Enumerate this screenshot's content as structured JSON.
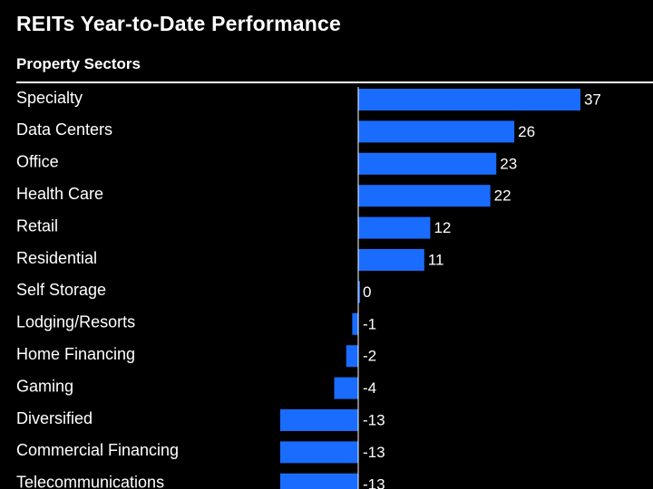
{
  "header": {
    "title": "REITs Year-to-Date Performance",
    "section": "Property Sectors"
  },
  "colors": {
    "background": "#000000",
    "bar": "#1a6cff",
    "text": "#ffffff",
    "axis": "#ffffff"
  },
  "chart_data": {
    "type": "bar",
    "orientation": "horizontal",
    "title": "REITs Year-to-Date Performance",
    "xlabel": "",
    "ylabel": "Property Sectors",
    "categories": [
      "Specialty",
      "Data Centers",
      "Office",
      "Health Care",
      "Retail",
      "Residential",
      "Self Storage",
      "Lodging/Resorts",
      "Home Financing",
      "Gaming",
      "Diversified",
      "Commercial Financing",
      "Telecommunications"
    ],
    "values": [
      37,
      26,
      23,
      22,
      12,
      11,
      0,
      -1,
      -2,
      -4,
      -13,
      -13,
      -13
    ],
    "value_labels": [
      "37",
      "26",
      "23",
      "22",
      "12",
      "11",
      "0",
      "-1",
      "-2",
      "-4",
      "-13",
      "-13",
      "-13"
    ],
    "xlim": [
      -13,
      37
    ],
    "grid": false
  }
}
